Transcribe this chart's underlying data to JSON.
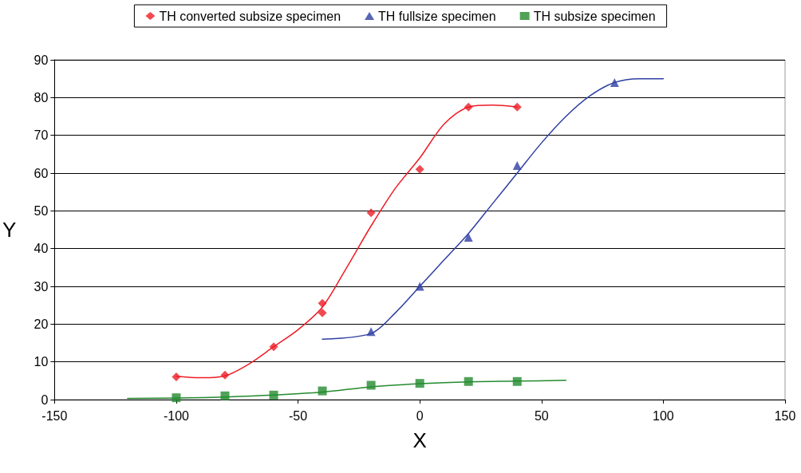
{
  "chart_data": {
    "type": "scatter",
    "xlabel": "X",
    "ylabel": "Y",
    "xlim": [
      -150,
      150
    ],
    "xticks": [
      -150,
      -100,
      -50,
      0,
      50,
      100,
      150
    ],
    "ylim": [
      0,
      90
    ],
    "yticks": [
      0,
      10,
      20,
      30,
      40,
      50,
      60,
      70,
      80,
      90
    ],
    "grid": "y",
    "legend": "top",
    "series": [
      {
        "name": "TH converted subsize specimen",
        "color": "#ee1c25",
        "marker": "diamond",
        "x": [
          -100,
          -80,
          -60,
          -40,
          -40,
          -20,
          0,
          20,
          40
        ],
        "values": [
          6,
          6.5,
          14,
          25.5,
          23,
          49.5,
          61,
          77.5,
          77.5
        ]
      },
      {
        "name": "TH fullsize specimen",
        "color": "#2e3fa3",
        "marker": "triangle",
        "x": [
          -20,
          0,
          20,
          40,
          80
        ],
        "values": [
          18,
          30,
          43,
          62,
          84
        ]
      },
      {
        "name": "TH subsize specimen",
        "color": "#238b2e",
        "marker": "square",
        "x": [
          -100,
          -80,
          -60,
          -40,
          -20,
          0,
          20,
          40
        ],
        "values": [
          0.5,
          1,
          1.2,
          2.3,
          3.8,
          4.3,
          4.8,
          4.8
        ]
      },
      {
        "type": "line",
        "color": "#ee1c25",
        "marker": "none",
        "x": [
          -100,
          -90,
          -80,
          -70,
          -60,
          -50,
          -40,
          -30,
          -20,
          -10,
          0,
          10,
          20,
          30,
          40
        ],
        "values": [
          6.2,
          5.8,
          6.3,
          9.5,
          14,
          18.5,
          24.5,
          35,
          46,
          56,
          64,
          73,
          77.5,
          78,
          77.5
        ]
      },
      {
        "type": "line",
        "color": "#2e3fa3",
        "marker": "none",
        "x": [
          -40,
          -20,
          -10,
          0,
          10,
          20,
          30,
          40,
          50,
          60,
          70,
          80,
          90,
          100
        ],
        "values": [
          16,
          17.5,
          23,
          30,
          37,
          44,
          52,
          60,
          68,
          75,
          80.5,
          84,
          85,
          85
        ]
      },
      {
        "type": "line",
        "color": "#238b2e",
        "marker": "none",
        "x": [
          -120,
          -100,
          -80,
          -60,
          -40,
          -20,
          0,
          20,
          40,
          60
        ],
        "values": [
          0.3,
          0.4,
          0.7,
          1.2,
          2,
          3.4,
          4.2,
          4.7,
          4.9,
          5.1
        ]
      }
    ]
  }
}
